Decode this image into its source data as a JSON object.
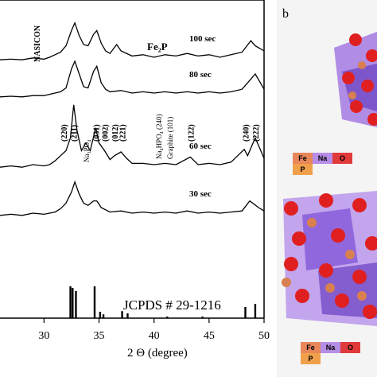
{
  "chart_data": {
    "type": "line",
    "xlabel": "2 Θ (degree)",
    "xlim": [
      26,
      50
    ],
    "x_ticks": [
      30,
      35,
      40,
      45,
      50
    ],
    "series": [
      {
        "name": "100 sec",
        "points": [
          [
            26,
            0.3
          ],
          [
            27,
            0.35
          ],
          [
            28,
            0.3
          ],
          [
            29,
            0.45
          ],
          [
            30,
            0.35
          ],
          [
            30.5,
            0.5
          ],
          [
            31,
            0.7
          ],
          [
            31.5,
            0.9
          ],
          [
            32,
            1.4
          ],
          [
            32.5,
            2.6
          ],
          [
            32.8,
            3.2
          ],
          [
            33.2,
            2.2
          ],
          [
            33.6,
            1.5
          ],
          [
            34,
            1.4
          ],
          [
            34.5,
            2.3
          ],
          [
            34.8,
            2.6
          ],
          [
            35.2,
            1.6
          ],
          [
            35.6,
            1.0
          ],
          [
            36,
            0.8
          ],
          [
            36.6,
            1.5
          ],
          [
            37,
            1.0
          ],
          [
            38,
            0.6
          ],
          [
            39,
            0.7
          ],
          [
            40,
            0.5
          ],
          [
            41,
            0.7
          ],
          [
            42,
            0.6
          ],
          [
            43,
            0.8
          ],
          [
            44,
            0.6
          ],
          [
            45,
            0.7
          ],
          [
            46,
            0.5
          ],
          [
            47,
            0.7
          ],
          [
            48,
            0.9
          ],
          [
            48.8,
            1.8
          ],
          [
            49.2,
            1.4
          ],
          [
            49.6,
            1.2
          ],
          [
            50,
            1.0
          ]
        ]
      },
      {
        "name": "80 sec",
        "points": [
          [
            26,
            0.2
          ],
          [
            27,
            0.25
          ],
          [
            28,
            0.2
          ],
          [
            29,
            0.3
          ],
          [
            30,
            0.3
          ],
          [
            30.5,
            0.4
          ],
          [
            31,
            0.5
          ],
          [
            31.5,
            0.6
          ],
          [
            32,
            0.9
          ],
          [
            32.5,
            2.4
          ],
          [
            32.8,
            3.0
          ],
          [
            33.2,
            2.0
          ],
          [
            33.6,
            1.0
          ],
          [
            34,
            0.9
          ],
          [
            34.5,
            2.2
          ],
          [
            34.8,
            2.6
          ],
          [
            35.2,
            1.3
          ],
          [
            35.6,
            0.8
          ],
          [
            36,
            0.6
          ],
          [
            37,
            0.7
          ],
          [
            38,
            0.5
          ],
          [
            39,
            0.6
          ],
          [
            40,
            0.5
          ],
          [
            41,
            0.6
          ],
          [
            42,
            0.5
          ],
          [
            43,
            0.6
          ],
          [
            44,
            0.5
          ],
          [
            45,
            0.6
          ],
          [
            46,
            0.5
          ],
          [
            47,
            0.6
          ],
          [
            48,
            0.8
          ],
          [
            48.8,
            1.6
          ],
          [
            49.2,
            2.0
          ],
          [
            49.6,
            1.4
          ],
          [
            50,
            0.8
          ]
        ]
      },
      {
        "name": "60 sec",
        "points": [
          [
            26,
            0.3
          ],
          [
            27,
            0.4
          ],
          [
            28,
            0.3
          ],
          [
            29,
            0.5
          ],
          [
            30,
            0.4
          ],
          [
            30.5,
            0.5
          ],
          [
            31,
            0.8
          ],
          [
            31.5,
            1.2
          ],
          [
            32,
            1.6
          ],
          [
            32.4,
            2.6
          ],
          [
            32.7,
            5.2
          ],
          [
            33,
            3.2
          ],
          [
            33.4,
            1.6
          ],
          [
            33.8,
            2.2
          ],
          [
            34.2,
            1.6
          ],
          [
            34.7,
            3.4
          ],
          [
            35,
            2.2
          ],
          [
            35.5,
            1.6
          ],
          [
            36,
            0.9
          ],
          [
            36.4,
            1.2
          ],
          [
            37,
            1.5
          ],
          [
            37.5,
            1.0
          ],
          [
            38,
            0.6
          ],
          [
            39,
            0.6
          ],
          [
            40,
            0.5
          ],
          [
            41,
            0.6
          ],
          [
            42,
            0.5
          ],
          [
            43.3,
            1.1
          ],
          [
            44,
            0.5
          ],
          [
            45,
            0.6
          ],
          [
            46,
            0.5
          ],
          [
            47,
            0.7
          ],
          [
            48.2,
            1.7
          ],
          [
            48.5,
            1.2
          ],
          [
            49.2,
            2.6
          ],
          [
            49.6,
            1.8
          ],
          [
            50,
            1.0
          ]
        ]
      },
      {
        "name": "30 sec",
        "points": [
          [
            26,
            0.3
          ],
          [
            27,
            0.4
          ],
          [
            28,
            0.3
          ],
          [
            29,
            0.5
          ],
          [
            30,
            0.4
          ],
          [
            31,
            0.6
          ],
          [
            31.5,
            0.9
          ],
          [
            32,
            1.4
          ],
          [
            32.5,
            2.4
          ],
          [
            32.8,
            3.3
          ],
          [
            33.2,
            2.2
          ],
          [
            33.6,
            1.4
          ],
          [
            34,
            1.2
          ],
          [
            34.5,
            1.6
          ],
          [
            34.8,
            1.6
          ],
          [
            35.2,
            1.0
          ],
          [
            35.6,
            0.8
          ],
          [
            36,
            0.6
          ],
          [
            37,
            0.7
          ],
          [
            38,
            0.5
          ],
          [
            39,
            0.6
          ],
          [
            40,
            0.5
          ],
          [
            41,
            0.6
          ],
          [
            42,
            0.5
          ],
          [
            43,
            0.7
          ],
          [
            44,
            0.5
          ],
          [
            45,
            0.6
          ],
          [
            46,
            0.5
          ],
          [
            47,
            0.6
          ],
          [
            48,
            0.7
          ],
          [
            48.7,
            1.6
          ],
          [
            49.1,
            1.3
          ],
          [
            49.5,
            1.0
          ],
          [
            50,
            0.7
          ]
        ]
      }
    ],
    "reference": {
      "name": "JCPDS # 29-1216",
      "sticks": [
        [
          32.4,
          1.0
        ],
        [
          32.6,
          0.95
        ],
        [
          32.9,
          0.85
        ],
        [
          34.6,
          1.0
        ],
        [
          35.1,
          0.2
        ],
        [
          35.4,
          0.12
        ],
        [
          37.1,
          0.22
        ],
        [
          37.6,
          0.15
        ],
        [
          41.2,
          0.05
        ],
        [
          44.4,
          0.05
        ],
        [
          48.3,
          0.35
        ],
        [
          49.2,
          0.45
        ]
      ]
    },
    "annotations": {
      "nasicon": "NASICON",
      "fe2p": "Fe₂P",
      "na3po4": "Na₃PO₄",
      "na4hpo4": "Na₄HPO₄ (240)",
      "graphite": "Graphite (101)",
      "hkl": [
        {
          "label": "(220)",
          "x": 31.8
        },
        {
          "label": "(211)",
          "x": 32.7
        },
        {
          "label": "(031)",
          "x": 34.7
        },
        {
          "label": "(002)",
          "x": 35.5
        },
        {
          "label": "(012)",
          "x": 36.4
        },
        {
          "label": "(221)",
          "x": 37.1
        },
        {
          "label": "(122)",
          "x": 43.3
        },
        {
          "label": "(240)",
          "x": 48.3
        },
        {
          "label": "(222)",
          "x": 49.2
        }
      ]
    }
  },
  "panel_b": {
    "letter": "b",
    "legend": [
      {
        "label": "Fe",
        "color": "#e8875a"
      },
      {
        "label": "Na",
        "color": "#b58de6"
      },
      {
        "label": "O",
        "color": "#e03a3a"
      },
      {
        "label": "P",
        "color": "#f0a04a"
      }
    ]
  }
}
